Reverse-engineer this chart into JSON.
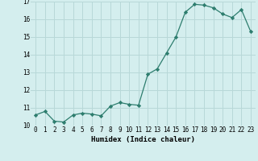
{
  "x": [
    0,
    1,
    2,
    3,
    4,
    5,
    6,
    7,
    8,
    9,
    10,
    11,
    12,
    13,
    14,
    15,
    16,
    17,
    18,
    19,
    20,
    21,
    22,
    23
  ],
  "y": [
    10.6,
    10.8,
    10.25,
    10.2,
    10.6,
    10.7,
    10.65,
    10.55,
    11.1,
    11.3,
    11.2,
    11.15,
    12.9,
    13.2,
    14.1,
    15.0,
    16.4,
    16.85,
    16.8,
    16.65,
    16.3,
    16.1,
    16.55,
    15.3
  ],
  "xlabel": "Humidex (Indice chaleur)",
  "ylim": [
    10,
    17
  ],
  "xlim": [
    -0.5,
    23.5
  ],
  "yticks": [
    10,
    11,
    12,
    13,
    14,
    15,
    16,
    17
  ],
  "xticks": [
    0,
    1,
    2,
    3,
    4,
    5,
    6,
    7,
    8,
    9,
    10,
    11,
    12,
    13,
    14,
    15,
    16,
    17,
    18,
    19,
    20,
    21,
    22,
    23
  ],
  "line_color": "#2d7d6e",
  "marker": "D",
  "marker_size": 2.2,
  "bg_color": "#d4eeee",
  "grid_color": "#b8d8d8",
  "fig_bg": "#d4eeee",
  "tick_fontsize": 5.5,
  "xlabel_fontsize": 6.5
}
